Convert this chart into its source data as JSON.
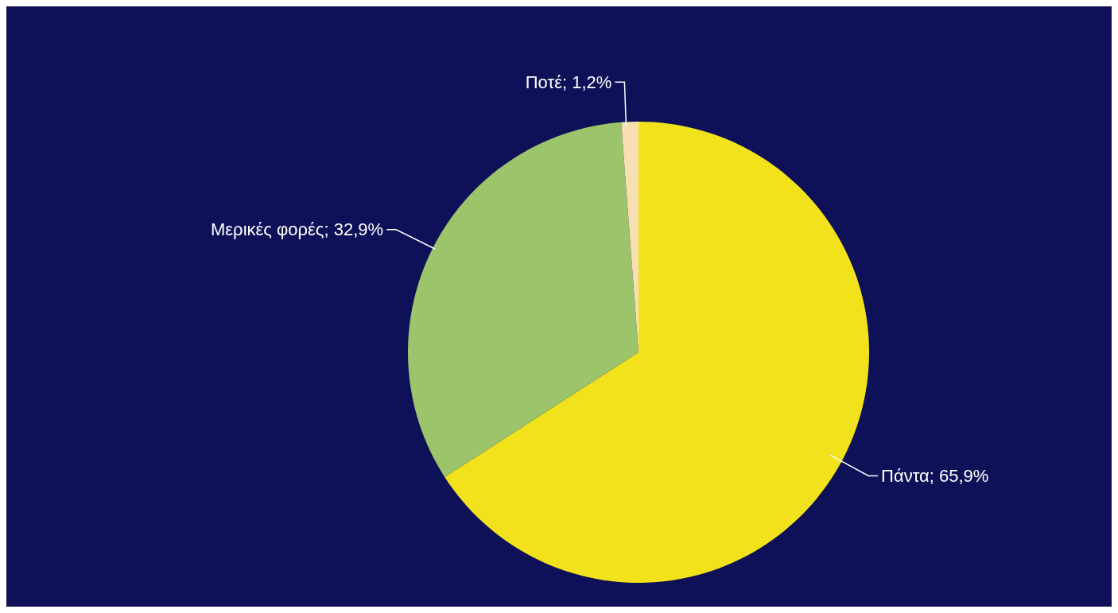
{
  "chart_data": {
    "type": "pie",
    "categories": [
      "Πάντα",
      "Μερικές φορές",
      "Ποτέ"
    ],
    "values": [
      65.9,
      32.9,
      1.2
    ],
    "value_labels": [
      "; 65,9%",
      "; 32,9%",
      "; 1,2%"
    ],
    "colors": [
      "#f2e21c",
      "#9cc46a",
      "#f6dfb0"
    ],
    "legend": false
  }
}
